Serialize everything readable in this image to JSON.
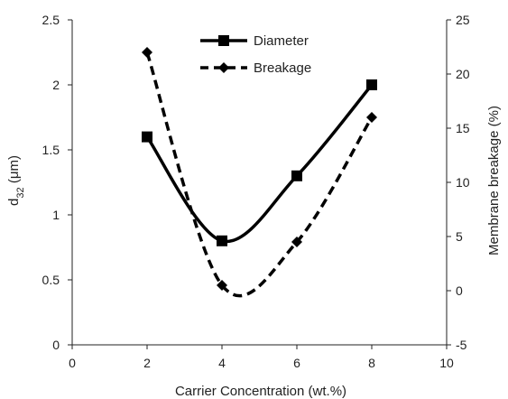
{
  "chart_data": {
    "type": "line",
    "xlabel": "Carrier Concentration (wt.%)",
    "ylabel": "d32 (μm)",
    "ylabel_main": "d",
    "ylabel_sub": "32",
    "ylabel_rest": " (μm)",
    "y2label": "Membrane breakage (%)",
    "xlim": [
      0,
      10
    ],
    "ylim": [
      0,
      2.5
    ],
    "y2lim": [
      -5,
      25
    ],
    "xticks": [
      "0",
      "2",
      "4",
      "6",
      "8",
      "10"
    ],
    "yticks": [
      "0",
      "0.5",
      "1",
      "1.5",
      "2",
      "2.5"
    ],
    "y2ticks": [
      "-5",
      "0",
      "5",
      "10",
      "15",
      "20",
      "25"
    ],
    "grid": false,
    "legend_position": "top-center",
    "series": [
      {
        "name": "Diameter",
        "axis": "left",
        "style": "solid",
        "marker": "square",
        "color": "#000000",
        "x": [
          2,
          4,
          6,
          8
        ],
        "values": [
          1.6,
          0.8,
          1.3,
          2.0
        ]
      },
      {
        "name": "Breakage",
        "axis": "right",
        "style": "dashed",
        "marker": "diamond",
        "color": "#000000",
        "x": [
          2,
          4,
          6,
          8
        ],
        "values": [
          22,
          0.5,
          4.5,
          16
        ]
      }
    ]
  }
}
